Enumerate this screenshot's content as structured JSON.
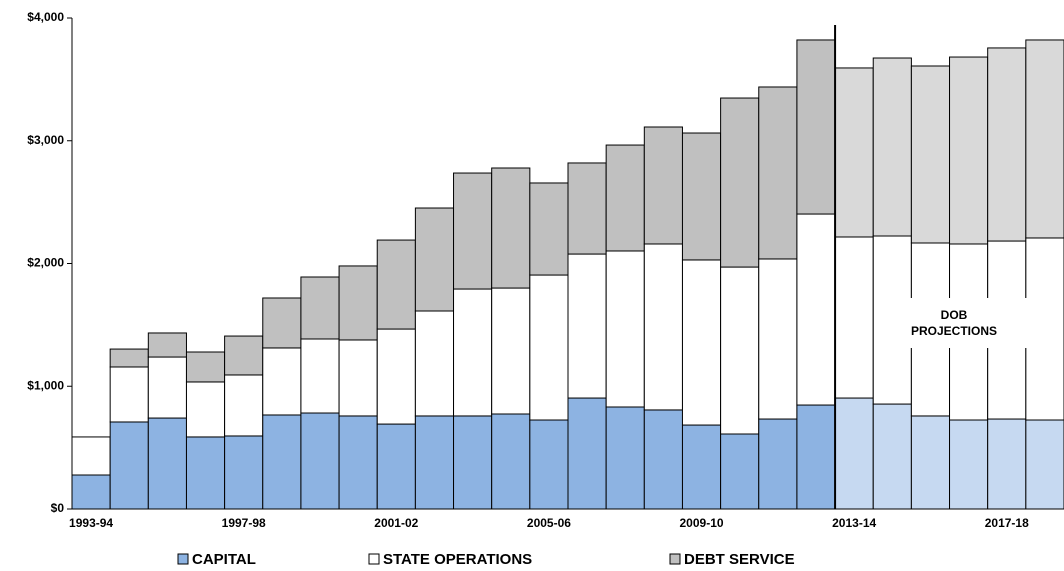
{
  "chart_data": {
    "type": "stacked_bar",
    "categories": [
      "1993-94",
      null,
      null,
      null,
      "1997-98",
      null,
      null,
      null,
      "2001-02",
      null,
      null,
      null,
      "2005-06",
      null,
      null,
      null,
      "2009-10",
      null,
      null,
      null,
      "2013-14",
      null,
      null,
      null,
      "2017-18",
      null
    ],
    "series": [
      {
        "name": "CAPITAL",
        "color": "#8db3e2",
        "projection_color": "#c6d9f1",
        "values": [
          277,
          709,
          741,
          587,
          595,
          766,
          782,
          758,
          692,
          758,
          758,
          774,
          725,
          904,
          831,
          807,
          684,
          611,
          733,
          847,
          904,
          855,
          758,
          725,
          733,
          725
        ]
      },
      {
        "name": "STATE OPERATIONS",
        "color": "#ffffff",
        "projection_color": "#ffffff",
        "values": [
          310,
          448,
          497,
          448,
          497,
          546,
          603,
          619,
          774,
          855,
          1034,
          1026,
          1181,
          1173,
          1271,
          1352,
          1345,
          1360,
          1304,
          1556,
          1312,
          1369,
          1409,
          1434,
          1450,
          1483
        ]
      },
      {
        "name": "DEBT SERVICE",
        "color": "#c0c0c0",
        "projection_color": "#d9d9d9",
        "values": [
          0,
          146,
          196,
          244,
          317,
          407,
          505,
          603,
          725,
          839,
          945,
          978,
          750,
          742,
          863,
          953,
          1034,
          1377,
          1401,
          1418,
          1377,
          1450,
          1442,
          1523,
          1573,
          1613
        ]
      }
    ],
    "projection_start": "2013-14",
    "annotation": [
      "DOB",
      "PROJECTIONS"
    ],
    "ylim": [
      0,
      4000
    ],
    "yticks": [
      {
        "value": 0,
        "label": "$0"
      },
      {
        "value": 1000,
        "label": "$1,000"
      },
      {
        "value": 2000,
        "label": "$2,000"
      },
      {
        "value": 3000,
        "label": "$3,000"
      },
      {
        "value": 4000,
        "label": "$4,000"
      }
    ]
  }
}
